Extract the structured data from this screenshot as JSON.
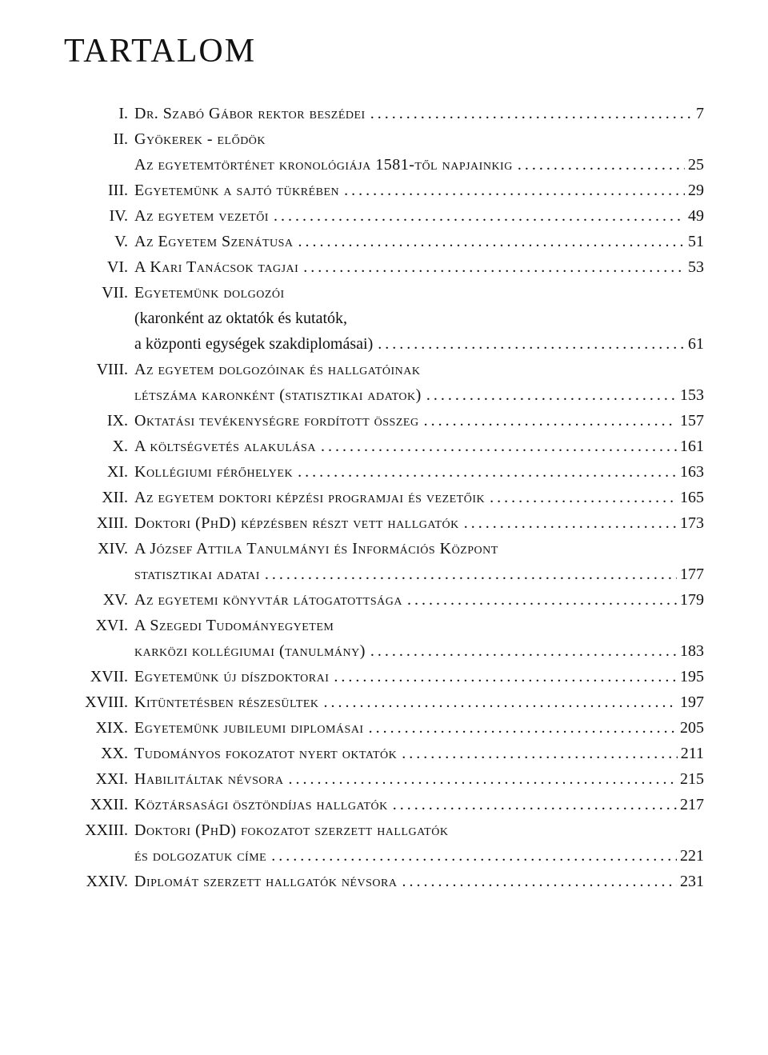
{
  "title": "TARTALOM",
  "entries": [
    {
      "num": "I.",
      "text": "Dr. Szabó Gábor rektor beszédei",
      "page": "7"
    },
    {
      "num": "II.",
      "text": "Gyökerek - elődök",
      "page": null,
      "nodots": true
    },
    {
      "num": "",
      "text": "Az egyetemtörténet kronológiája 1581-től napjainkig",
      "page": "25",
      "sub": true
    },
    {
      "num": "III.",
      "text": "Egyetemünk a sajtó tükrében",
      "page": "29"
    },
    {
      "num": "IV.",
      "text": "Az egyetem vezetői",
      "page": "49"
    },
    {
      "num": "V.",
      "text": "Az Egyetem Szenátusa",
      "page": "51"
    },
    {
      "num": "VI.",
      "text": "A Kari Tanácsok tagjai",
      "page": "53"
    },
    {
      "num": "VII.",
      "text": "Egyetemünk dolgozói",
      "page": null,
      "nodots": true
    },
    {
      "num": "",
      "text": "(karonként az oktatók és kutatók,",
      "page": null,
      "sub": true,
      "nodots": true,
      "nosmallcaps": true
    },
    {
      "num": "",
      "text": "a központi egységek szakdiplomásai)",
      "page": "61",
      "sub": true,
      "nosmallcaps": true
    },
    {
      "num": "VIII.",
      "text": "Az egyetem dolgozóinak és hallgatóinak",
      "page": null,
      "nodots": true
    },
    {
      "num": "",
      "text": "létszáma karonként (statisztikai adatok)",
      "page": "153",
      "sub": true
    },
    {
      "num": "IX.",
      "text": "Oktatási tevékenységre fordított összeg",
      "page": "157"
    },
    {
      "num": "X.",
      "text": "A költségvetés alakulása",
      "page": "161"
    },
    {
      "num": "XI.",
      "text": "Kollégiumi férőhelyek",
      "page": "163"
    },
    {
      "num": "XII.",
      "text": "Az egyetem doktori képzési programjai és vezetőik",
      "page": "165"
    },
    {
      "num": "XIII.",
      "text": "Doktori (PhD) képzésben részt vett hallgatók",
      "page": "173"
    },
    {
      "num": "XIV.",
      "text": "A József Attila Tanulmányi és Információs Központ",
      "page": null,
      "nodots": true
    },
    {
      "num": "",
      "text": "statisztikai adatai",
      "page": "177",
      "sub": true
    },
    {
      "num": "XV.",
      "text": "Az egyetemi könyvtár látogatottsága",
      "page": "179"
    },
    {
      "num": "XVI.",
      "text": "A Szegedi Tudományegyetem",
      "page": null,
      "nodots": true
    },
    {
      "num": "",
      "text": "karközi kollégiumai (tanulmány)",
      "page": "183",
      "sub": true
    },
    {
      "num": "XVII.",
      "text": "Egyetemünk új díszdoktorai",
      "page": "195"
    },
    {
      "num": "XVIII.",
      "text": "Kitüntetésben részesültek",
      "page": "197"
    },
    {
      "num": "XIX.",
      "text": "Egyetemünk jubileumi diplomásai",
      "page": "205"
    },
    {
      "num": "XX.",
      "text": "Tudományos fokozatot nyert oktatók",
      "page": "211"
    },
    {
      "num": "XXI.",
      "text": "Habilitáltak névsora",
      "page": "215"
    },
    {
      "num": "XXII.",
      "text": "Köztársasági ösztöndíjas hallgatók",
      "page": "217"
    },
    {
      "num": "XXIII.",
      "text": "Doktori (PhD) fokozatot szerzett hallgatók",
      "page": null,
      "nodots": true
    },
    {
      "num": "",
      "text": "és dolgozatuk címe",
      "page": "221",
      "sub": true
    },
    {
      "num": "XXIV.",
      "text": "Diplomát szerzett hallgatók névsora",
      "page": "231"
    }
  ]
}
